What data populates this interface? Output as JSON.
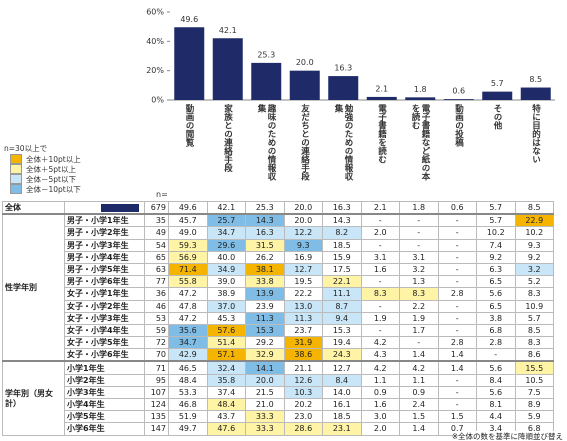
{
  "chart_data": {
    "type": "bar",
    "categories": [
      "動画の閲覧",
      "家族との連絡手段",
      "趣味のための情報収集",
      "友だちとの連絡手段",
      "勉強のための情報収集",
      "電子書籍を読む",
      "電子書籍など紙の本を読む",
      "動画の投稿",
      "その他",
      "特に目的はない"
    ],
    "values": [
      49.6,
      42.1,
      25.3,
      20.0,
      16.3,
      2.1,
      1.8,
      0.6,
      5.7,
      8.5
    ],
    "value_labels": [
      "49.6",
      "42.1",
      "25.3",
      "20.0",
      "16.3",
      "2.1",
      "1.8",
      "0.6",
      "5.7",
      "8.5"
    ],
    "color": "#1f2a68",
    "ylim": [
      0,
      60
    ],
    "yticks": [
      {
        "value": 0,
        "label": "0%"
      },
      {
        "value": 20,
        "label": "20%"
      },
      {
        "value": 40,
        "label": "40%"
      },
      {
        "value": 60,
        "label": "60%"
      }
    ]
  },
  "legend": {
    "title": "n=30以上で",
    "items": [
      {
        "label": "全体＋10pt以上",
        "color": "#f5b400",
        "diff": 10
      },
      {
        "label": "全体＋5pt以上",
        "color": "#fff3a6",
        "diff": 5
      },
      {
        "label": "全体－5pt以下",
        "color": "#c8e6f7",
        "diff": -5
      },
      {
        "label": "全体－10pt以下",
        "color": "#7fbde6",
        "diff": -10
      }
    ]
  },
  "table": {
    "n_header": "n=",
    "total": {
      "label": "全体",
      "n": "679",
      "cells": [
        "49.6",
        "42.1",
        "25.3",
        "20.0",
        "16.3",
        "2.1",
        "1.8",
        "0.6",
        "5.7",
        "8.5"
      ]
    },
    "groups": [
      {
        "label": "性学年別",
        "rows": [
          {
            "label": "男子・小学1年生",
            "n": "35",
            "cells": [
              "45.7",
              "25.7",
              "14.3",
              "20.0",
              "14.3",
              "-",
              "-",
              "-",
              "5.7",
              "22.9"
            ]
          },
          {
            "label": "男子・小学2年生",
            "n": "49",
            "cells": [
              "49.0",
              "34.7",
              "16.3",
              "12.2",
              "8.2",
              "2.0",
              "-",
              "-",
              "10.2",
              "10.2"
            ]
          },
          {
            "label": "男子・小学3年生",
            "n": "54",
            "cells": [
              "59.3",
              "29.6",
              "31.5",
              "9.3",
              "18.5",
              "-",
              "-",
              "-",
              "7.4",
              "9.3"
            ]
          },
          {
            "label": "男子・小学4年生",
            "n": "65",
            "cells": [
              "56.9",
              "40.0",
              "26.2",
              "16.9",
              "15.9",
              "3.1",
              "3.1",
              "-",
              "9.2",
              "9.2"
            ]
          },
          {
            "label": "男子・小学5年生",
            "n": "63",
            "cells": [
              "71.4",
              "34.9",
              "38.1",
              "12.7",
              "17.5",
              "1.6",
              "3.2",
              "-",
              "6.3",
              "3.2"
            ]
          },
          {
            "label": "男子・小学6年生",
            "n": "77",
            "cells": [
              "55.8",
              "39.0",
              "33.8",
              "19.5",
              "22.1",
              "-",
              "1.3",
              "-",
              "6.5",
              "5.2"
            ]
          },
          {
            "label": "女子・小学1年生",
            "n": "36",
            "cells": [
              "47.2",
              "38.9",
              "13.9",
              "22.2",
              "11.1",
              "8.3",
              "8.3",
              "2.8",
              "5.6",
              "8.3"
            ]
          },
          {
            "label": "女子・小学2年生",
            "n": "46",
            "cells": [
              "47.8",
              "37.0",
              "23.9",
              "13.0",
              "8.7",
              "-",
              "2.2",
              "-",
              "6.5",
              "10.9"
            ]
          },
          {
            "label": "女子・小学3年生",
            "n": "53",
            "cells": [
              "47.2",
              "45.3",
              "11.3",
              "11.3",
              "9.4",
              "1.9",
              "1.9",
              "-",
              "3.8",
              "5.7"
            ]
          },
          {
            "label": "女子・小学4年生",
            "n": "59",
            "cells": [
              "35.6",
              "57.6",
              "15.3",
              "23.7",
              "15.3",
              "-",
              "1.7",
              "-",
              "6.8",
              "8.5"
            ]
          },
          {
            "label": "女子・小学5年生",
            "n": "72",
            "cells": [
              "34.7",
              "51.4",
              "29.2",
              "31.9",
              "19.4",
              "4.2",
              "-",
              "2.8",
              "2.8",
              "8.3"
            ]
          },
          {
            "label": "女子・小学6年生",
            "n": "70",
            "cells": [
              "42.9",
              "57.1",
              "32.9",
              "38.6",
              "24.3",
              "4.3",
              "1.4",
              "1.4",
              "-",
              "8.6"
            ]
          }
        ]
      },
      {
        "label": "学年別（男女計）",
        "rows": [
          {
            "label": "小学1年生",
            "n": "71",
            "cells": [
              "46.5",
              "32.4",
              "14.1",
              "21.1",
              "12.7",
              "4.2",
              "4.2",
              "1.4",
              "5.6",
              "15.5"
            ]
          },
          {
            "label": "小学2年生",
            "n": "95",
            "cells": [
              "48.4",
              "35.8",
              "20.0",
              "12.6",
              "8.4",
              "1.1",
              "1.1",
              "-",
              "8.4",
              "10.5"
            ]
          },
          {
            "label": "小学3年生",
            "n": "107",
            "cells": [
              "53.3",
              "37.4",
              "21.5",
              "10.3",
              "14.0",
              "0.9",
              "0.9",
              "-",
              "5.6",
              "7.5"
            ]
          },
          {
            "label": "小学4年生",
            "n": "124",
            "cells": [
              "46.8",
              "48.4",
              "21.0",
              "20.2",
              "16.1",
              "1.6",
              "2.4",
              "-",
              "8.1",
              "8.9"
            ]
          },
          {
            "label": "小学5年生",
            "n": "135",
            "cells": [
              "51.9",
              "43.7",
              "33.3",
              "23.0",
              "18.5",
              "3.0",
              "1.5",
              "1.5",
              "4.4",
              "5.9"
            ]
          },
          {
            "label": "小学6年生",
            "n": "147",
            "cells": [
              "49.7",
              "47.6",
              "33.3",
              "28.6",
              "23.1",
              "2.0",
              "1.4",
              "0.7",
              "3.4",
              "6.8"
            ]
          }
        ]
      }
    ]
  },
  "footnote": "※全体の数を基準に降順並び替え"
}
